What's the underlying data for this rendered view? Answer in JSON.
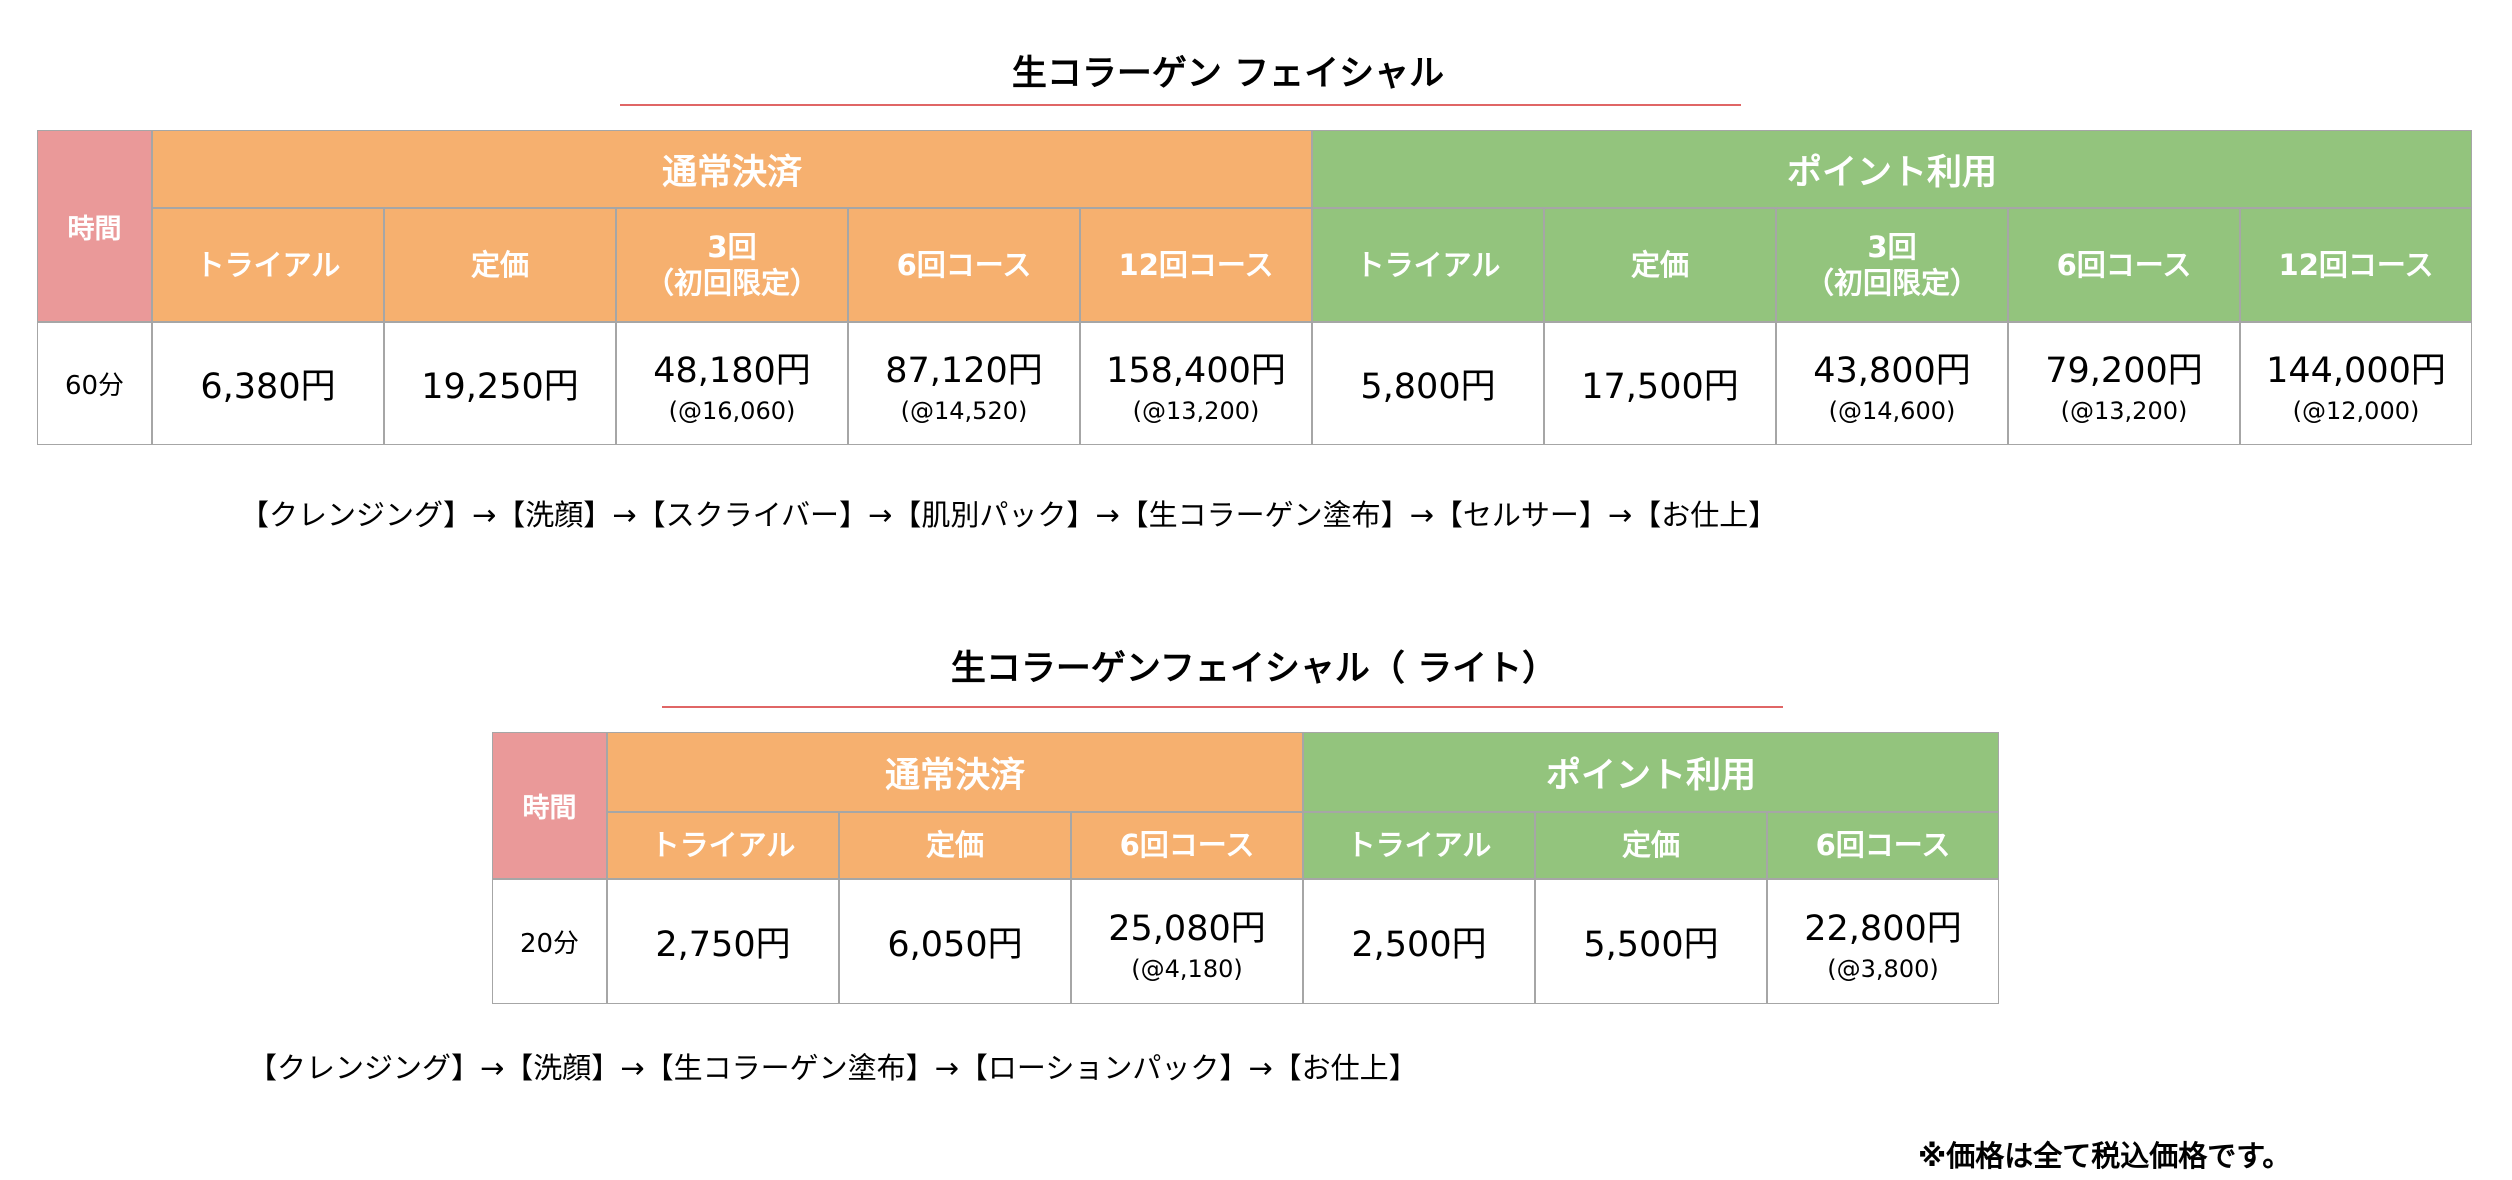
{
  "sections": [
    {
      "title": "生コラーゲン フェイシャル",
      "table": {
        "time_header": "時間",
        "groups": [
          {
            "label": "通常決済",
            "columns": [
              "トライアル",
              "定価",
              "3回\n（初回限定）",
              "6回コース",
              "12回コース"
            ]
          },
          {
            "label": "ポイント利用",
            "columns": [
              "トライアル",
              "定価",
              "3回\n（初回限定）",
              "6回コース",
              "12回コース"
            ]
          }
        ],
        "rows": [
          {
            "time": "60分",
            "cells": [
              {
                "price": "6,380円"
              },
              {
                "price": "19,250円"
              },
              {
                "price": "48,180円",
                "unit": "(@16,060)"
              },
              {
                "price": "87,120円",
                "unit": "(@14,520)"
              },
              {
                "price": "158,400円",
                "unit": "(@13,200)"
              },
              {
                "price": "5,800円"
              },
              {
                "price": "17,500円"
              },
              {
                "price": "43,800円",
                "unit": "(@14,600)"
              },
              {
                "price": "79,200円",
                "unit": "(@13,200)"
              },
              {
                "price": "144,000円",
                "unit": "(@12,000)"
              }
            ]
          }
        ]
      },
      "flow": "【クレンジング】→【洗顔】→【スクライバー】→【肌別パック】→【生コラーゲン塗布】→【セルサー】→【お仕上】"
    },
    {
      "title": "生コラーゲンフェイシャル（  ライト）",
      "table": {
        "time_header": "時間",
        "groups": [
          {
            "label": "通常決済",
            "columns": [
              "トライアル",
              "定価",
              "6回コース"
            ]
          },
          {
            "label": "ポイント利用",
            "columns": [
              "トライアル",
              "定価",
              "6回コース"
            ]
          }
        ],
        "rows": [
          {
            "time": "20分",
            "cells": [
              {
                "price": "2,750円"
              },
              {
                "price": "6,050円"
              },
              {
                "price": "25,080円",
                "unit": "(@4,180)"
              },
              {
                "price": "2,500円"
              },
              {
                "price": "5,500円"
              },
              {
                "price": "22,800円",
                "unit": "(@3,800)"
              }
            ]
          }
        ]
      },
      "flow": "【クレンジング】→【洗顔】→【生コラーゲン塗布】→【ローションパック】→【お仕上】"
    }
  ],
  "note": "※価格は全て税込価格です。"
}
